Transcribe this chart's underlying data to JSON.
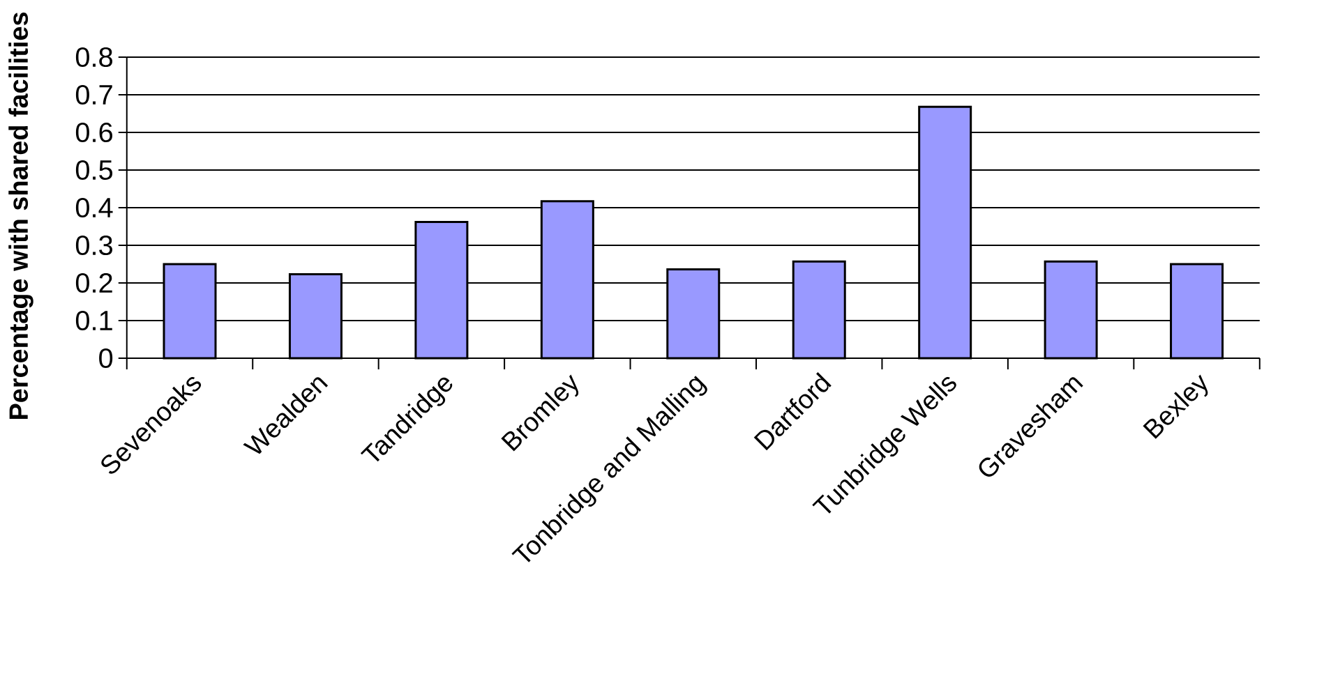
{
  "chart_data": {
    "type": "bar",
    "ylabel": "Percentage with shared facilities",
    "categories": [
      "Sevenoaks",
      "Wealden",
      "Tandridge",
      "Bromley",
      "Tonbridge and Malling",
      "Dartford",
      "Tunbridge Wells",
      "Gravesham",
      "Bexley"
    ],
    "values": [
      0.25,
      0.223,
      0.362,
      0.417,
      0.236,
      0.257,
      0.668,
      0.257,
      0.25
    ],
    "color": "#9999ff",
    "ylim": [
      0,
      0.8
    ],
    "yticks": [
      0,
      0.1,
      0.2,
      0.3,
      0.4,
      0.5,
      0.6,
      0.7,
      0.8
    ],
    "grid": "y"
  }
}
